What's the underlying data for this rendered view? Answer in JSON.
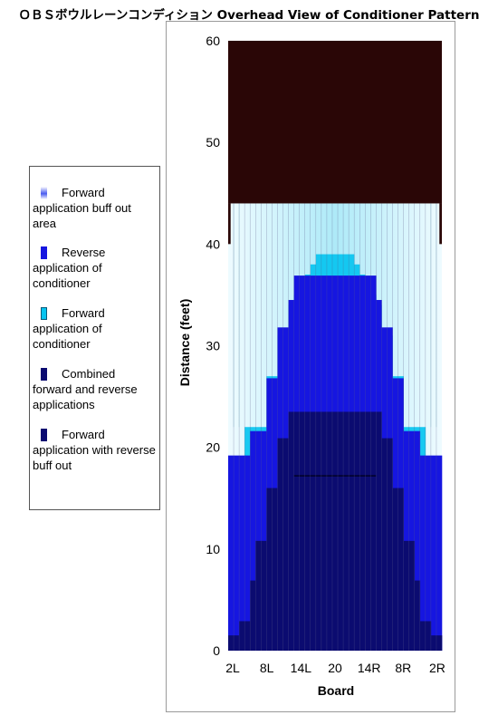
{
  "title": "ＯＢＳボウルレーンコンディション Overhead View of Conditioner Pattern",
  "colors": {
    "dark": "#2a0606",
    "combined": "#0b0b70",
    "reverse": "#1616e0",
    "forward": "#06c4f0",
    "buff_light": "#d8f4fc",
    "gridline": "#5a5a8a"
  },
  "legend": {
    "items": [
      {
        "label": "Forward application buff out area",
        "swatch": "gradient-blue-white"
      },
      {
        "label": "Reverse application of conditioner",
        "swatch": "#1616e0"
      },
      {
        "label": "Forward application of conditioner",
        "swatch": "#06c4f0"
      },
      {
        "label": "Combined forward and reverse applications",
        "swatch": "#0b0b70"
      },
      {
        "label": "Forward application with reverse buff out",
        "swatch": "#0b0b70"
      }
    ]
  },
  "chart_data": {
    "type": "area",
    "title": "",
    "xlabel": "Board",
    "ylabel": "Distance (feet)",
    "ylim": [
      0,
      60
    ],
    "xticks": [
      "2L",
      "8L",
      "14L",
      "20",
      "14R",
      "8R",
      "2R"
    ],
    "yticks": [
      0,
      10,
      20,
      30,
      40,
      50,
      60
    ],
    "boards": 39,
    "oil_end_feet": 44,
    "outer_edge_top_feet": 40,
    "series": [
      {
        "name": "Forward application of conditioner",
        "values": [
          19,
          19,
          19,
          22,
          22,
          22,
          22,
          27,
          27,
          31,
          31,
          34,
          35,
          36,
          37,
          38,
          39,
          39,
          39,
          39,
          39,
          39,
          39,
          38,
          37,
          36,
          35,
          34,
          31,
          31,
          27,
          27,
          22,
          22,
          22,
          22,
          19,
          19,
          19
        ]
      },
      {
        "name": "Reverse application of conditioner",
        "values": [
          19.2,
          19.2,
          19.2,
          19.2,
          21.6,
          21.6,
          21.6,
          26.8,
          26.8,
          31.8,
          31.8,
          34.5,
          36.9,
          36.9,
          36.9,
          36.9,
          36.9,
          36.9,
          36.9,
          36.9,
          36.9,
          36.9,
          36.9,
          36.9,
          36.9,
          36.9,
          36.9,
          34.5,
          31.8,
          31.8,
          26.8,
          26.8,
          21.6,
          21.6,
          21.6,
          19.2,
          19.2,
          19.2,
          19.2
        ]
      },
      {
        "name": "Combined forward and reverse applications",
        "values": [
          1.5,
          1.5,
          2.9,
          2.9,
          6.9,
          10.8,
          10.8,
          16,
          16,
          20.9,
          20.9,
          23.5,
          23.5,
          23.5,
          23.5,
          23.5,
          23.5,
          23.5,
          23.5,
          23.5,
          23.5,
          23.5,
          23.5,
          23.5,
          23.5,
          23.5,
          23.5,
          23.5,
          20.9,
          20.9,
          16,
          16,
          10.8,
          10.8,
          6.9,
          2.9,
          2.9,
          1.5,
          1.5
        ]
      },
      {
        "name": "Forward application with reverse buff out",
        "values": [
          0,
          0,
          0,
          0,
          0,
          0,
          0,
          0,
          0,
          0,
          0,
          0,
          17.2,
          17.2,
          17.2,
          17.2,
          17.2,
          17.2,
          17.2,
          17.2,
          17.2,
          17.2,
          17.2,
          17.2,
          17.2,
          17.2,
          17.2,
          0,
          0,
          0,
          0,
          0,
          0,
          0,
          0,
          0,
          0,
          0,
          0
        ]
      }
    ]
  }
}
